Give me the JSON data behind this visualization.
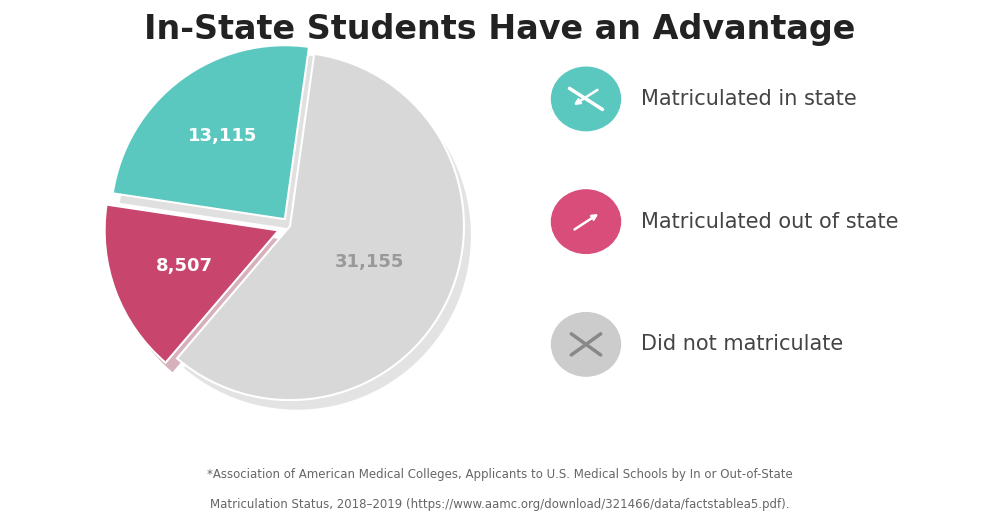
{
  "title": "In-State Students Have an Advantage",
  "values": [
    13115,
    8507,
    31155
  ],
  "labels": [
    "13,115",
    "8,507",
    "31,155"
  ],
  "colors": [
    "#5bc8c0",
    "#c8456e",
    "#d8d8d8"
  ],
  "legend_labels": [
    "Matriculated in state",
    "Matriculated out of state",
    "Did not matriculate"
  ],
  "legend_icon_colors": [
    "#5bc8c0",
    "#d94d7a",
    "#cccccc"
  ],
  "startangle": 82,
  "footnote_line1": "*Association of American Medical Colleges, Applicants to U.S. Medical Schools by In or Out-of-State",
  "footnote_line2": "Matriculation Status, 2018–2019 (https://www.aamc.org/download/321466/data/factstablea5.pdf).",
  "bg_color": "#ffffff",
  "footer_bg_color": "#efefef",
  "title_fontsize": 24,
  "label_fontsize": 13,
  "legend_fontsize": 15,
  "label_color_0": "#ffffff",
  "label_color_1": "#ffffff",
  "label_color_2": "#999999"
}
